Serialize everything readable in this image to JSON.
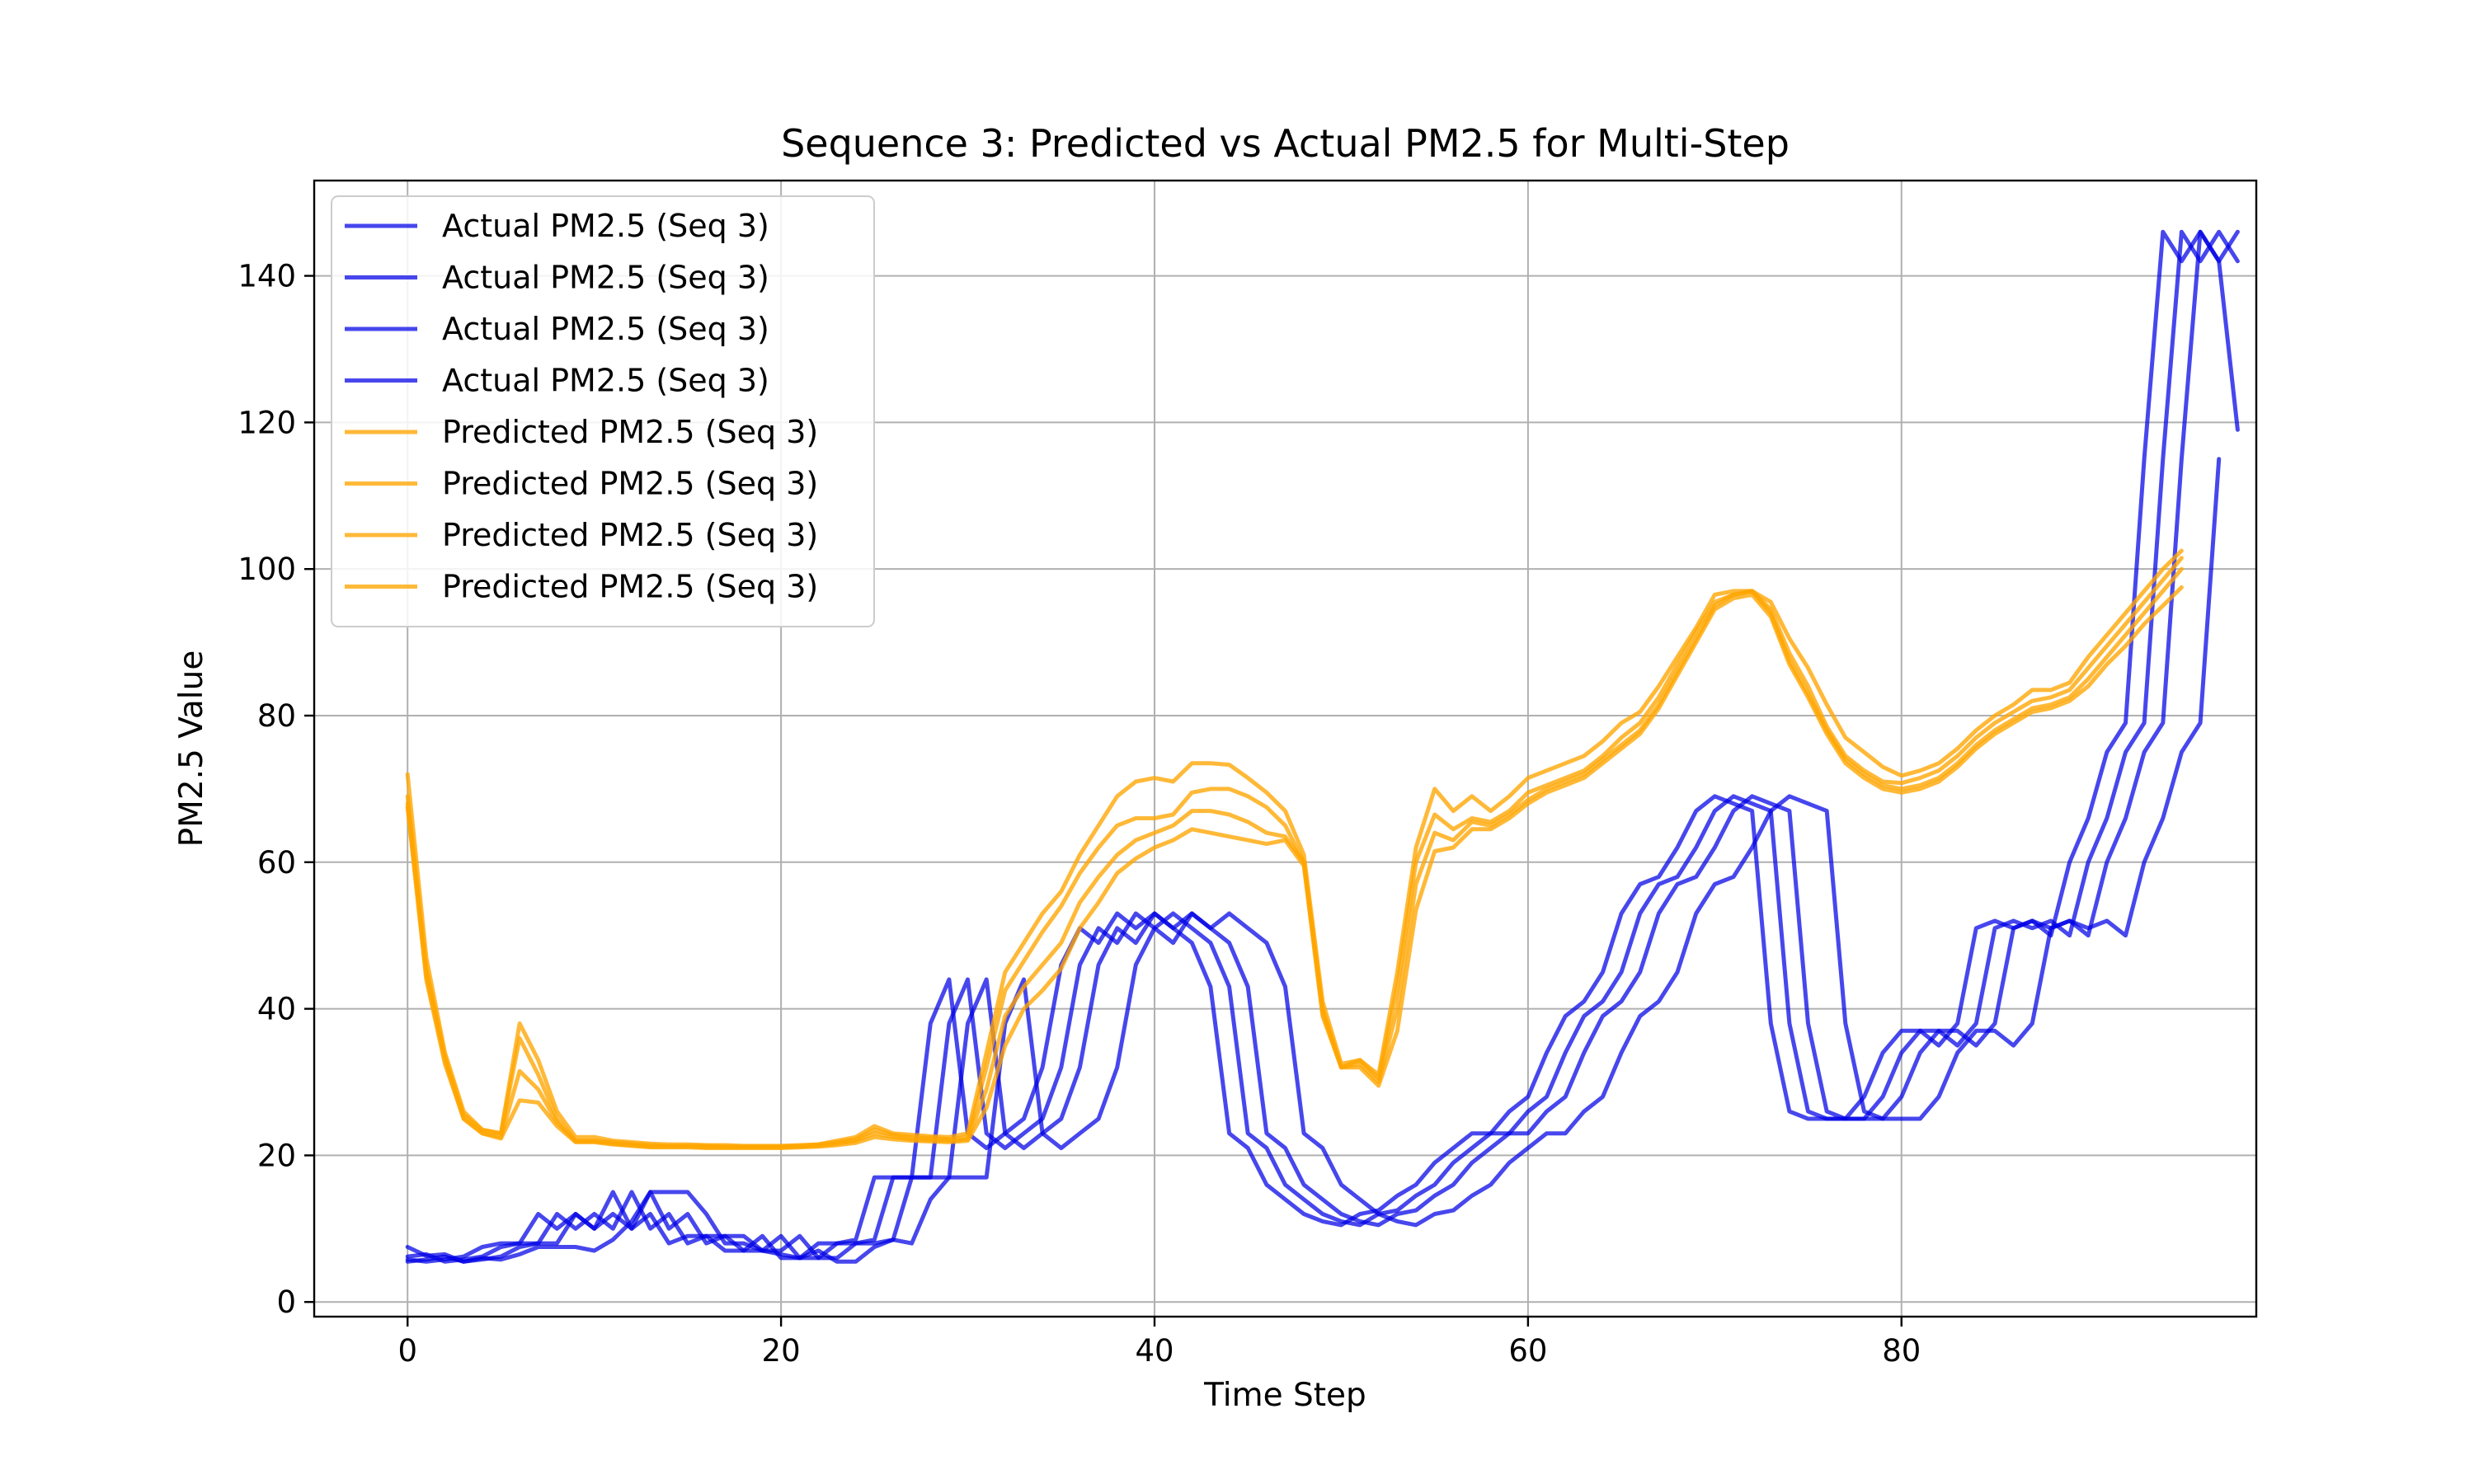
{
  "chart_data": {
    "type": "line",
    "title": "Sequence 3: Predicted vs Actual PM2.5 for Multi-Step",
    "xlabel": "Time Step",
    "ylabel": "PM2.5 Value",
    "xlim": [
      -5,
      99
    ],
    "ylim": [
      -2,
      153
    ],
    "xticks": [
      0,
      20,
      40,
      60,
      80
    ],
    "yticks": [
      0,
      20,
      40,
      60,
      80,
      100,
      120,
      140
    ],
    "grid": true,
    "legend_position": "upper-left",
    "colors": {
      "actual": "#0000e6",
      "predicted": "#ffa500"
    },
    "series": [
      {
        "name": "Actual PM2.5 (Seq 3)",
        "kind": "actual",
        "x_start": 0,
        "values": [
          7.5,
          6.3,
          6.5,
          5.5,
          5.8,
          6.2,
          7.5,
          8,
          8,
          12,
          10,
          12,
          10,
          15,
          10,
          12,
          8,
          9,
          9,
          7,
          7,
          9,
          6,
          6,
          8,
          8,
          8.5,
          17,
          17,
          17,
          38,
          44,
          23,
          21,
          23,
          25,
          32,
          46,
          51,
          49,
          53,
          51,
          53,
          51,
          49,
          43,
          23,
          21,
          16,
          14,
          12,
          11,
          10.5,
          12,
          12.5,
          14.5,
          16,
          19,
          21,
          23,
          23,
          26,
          28,
          34,
          39,
          41,
          45,
          53,
          57,
          58,
          62,
          67,
          69,
          68,
          67,
          38,
          26,
          25,
          25,
          25,
          28,
          34,
          37,
          37,
          35,
          38,
          51,
          52,
          51,
          52,
          50,
          60,
          66,
          75,
          79,
          115,
          146,
          142,
          146
        ]
      },
      {
        "name": "Actual PM2.5 (Seq 3)",
        "kind": "actual",
        "x_start": 0,
        "values": [
          6.2,
          6.5,
          5.5,
          5.8,
          6.2,
          7.5,
          8,
          8,
          12,
          10,
          12,
          10,
          15,
          10,
          12,
          8,
          9,
          9,
          7,
          7,
          9,
          6,
          6,
          8,
          8,
          8.5,
          17,
          17,
          17,
          38,
          44,
          23,
          21,
          23,
          25,
          32,
          46,
          51,
          49,
          53,
          51,
          53,
          51,
          49,
          43,
          23,
          21,
          16,
          14,
          12,
          11,
          10.5,
          12,
          12.5,
          14.5,
          16,
          19,
          21,
          23,
          23,
          26,
          28,
          34,
          39,
          41,
          45,
          53,
          57,
          58,
          62,
          67,
          69,
          68,
          67,
          38,
          26,
          25,
          25,
          25,
          28,
          34,
          37,
          37,
          35,
          38,
          51,
          52,
          51,
          52,
          50,
          60,
          66,
          75,
          79,
          115,
          146,
          142,
          146,
          142
        ]
      },
      {
        "name": "Actual PM2.5 (Seq 3)",
        "kind": "actual",
        "x_start": 0,
        "values": [
          5.8,
          5.5,
          5.8,
          6.2,
          7.5,
          8,
          8,
          12,
          10,
          12,
          10,
          15,
          10,
          12,
          8,
          9,
          9,
          7,
          7,
          9,
          6,
          6,
          8,
          8,
          8.5,
          17,
          17,
          17,
          38,
          44,
          23,
          21,
          23,
          25,
          32,
          46,
          51,
          49,
          53,
          51,
          53,
          51,
          49,
          43,
          23,
          21,
          16,
          14,
          12,
          11,
          10.5,
          12,
          12.5,
          14.5,
          16,
          19,
          21,
          23,
          23,
          26,
          28,
          34,
          39,
          41,
          45,
          53,
          57,
          58,
          62,
          67,
          69,
          68,
          67,
          38,
          26,
          25,
          25,
          25,
          28,
          34,
          37,
          37,
          35,
          38,
          51,
          52,
          51,
          52,
          50,
          60,
          66,
          75,
          79,
          115,
          146,
          142,
          146,
          142,
          119
        ]
      },
      {
        "name": "Actual PM2.5 (Seq 3)",
        "kind": "actual",
        "x_start": 0,
        "values": [
          5.5,
          5.8,
          6.2,
          5.5,
          6,
          5.8,
          6.5,
          7.5,
          7.5,
          7.5,
          7,
          8.5,
          11,
          15,
          15,
          15,
          12,
          8,
          8,
          7,
          6.5,
          6,
          7,
          5.5,
          5.5,
          7.5,
          8.5,
          8,
          14,
          17,
          17,
          17,
          38,
          44,
          23,
          21,
          23,
          25,
          32,
          46,
          51,
          49,
          53,
          51,
          53,
          51,
          49,
          43,
          23,
          21,
          16,
          14,
          12,
          11,
          10.5,
          12,
          12.5,
          14.5,
          16,
          19,
          21,
          23,
          23,
          26,
          28,
          34,
          39,
          41,
          45,
          53,
          57,
          58,
          62,
          67,
          69,
          68,
          67,
          38,
          26,
          25,
          25,
          25,
          28,
          34,
          37,
          37,
          35,
          38,
          51,
          52,
          51,
          52,
          50,
          60,
          66,
          75,
          79,
          115
        ]
      },
      {
        "name": "Predicted PM2.5 (Seq 3)",
        "kind": "predicted",
        "x_start": 0,
        "values": [
          72,
          47,
          34,
          26,
          23.5,
          23,
          38,
          33,
          26,
          22.5,
          22.5,
          22,
          21.8,
          21.6,
          21.5,
          21.5,
          21.4,
          21.4,
          21.3,
          21.3,
          21.3,
          21.4,
          21.5,
          22,
          22.5,
          24,
          23,
          22.8,
          22.6,
          22.5,
          23,
          34,
          45,
          49,
          53,
          56,
          61,
          65,
          69,
          71,
          71.5,
          71,
          73.5,
          73.5,
          73.3,
          71.5,
          69.5,
          67,
          61,
          41,
          32.5,
          33,
          31,
          45,
          62,
          70,
          67,
          69,
          67,
          69,
          71.5,
          72.5,
          73.5,
          74.5,
          76.5,
          79,
          80.5,
          84,
          88,
          92,
          96.5,
          97,
          97,
          95.5,
          90.5,
          86.5,
          81.5,
          77,
          75,
          73,
          71.8,
          72.5,
          73.5,
          75.5,
          78,
          80,
          81.5,
          83.5,
          83.5,
          84.5,
          88,
          91,
          94,
          97,
          100,
          102.5
        ]
      },
      {
        "name": "Predicted PM2.5 (Seq 3)",
        "kind": "predicted",
        "x_start": 0,
        "values": [
          69,
          45.5,
          33.5,
          25.5,
          23.5,
          23,
          36,
          31,
          25,
          22,
          22,
          21.8,
          21.6,
          21.4,
          21.3,
          21.3,
          21.3,
          21.2,
          21.2,
          21.2,
          21.2,
          21.3,
          21.5,
          21.8,
          22.2,
          23.5,
          22.8,
          22.5,
          22.4,
          22.2,
          22.5,
          32,
          42.5,
          46.5,
          50.5,
          54,
          58.5,
          62,
          65,
          66,
          66,
          66.5,
          69.5,
          70,
          70,
          69,
          67.5,
          65,
          60,
          40,
          32,
          33,
          30.5,
          43,
          60,
          66.5,
          64.5,
          66,
          65.5,
          67,
          69.5,
          70.5,
          71.5,
          72.5,
          74.5,
          77,
          79,
          82.5,
          87,
          91.5,
          95.5,
          96.5,
          97,
          94.5,
          88.5,
          84,
          78.5,
          74.5,
          72.5,
          71,
          70.8,
          71.5,
          72.5,
          74.5,
          77,
          79,
          80.5,
          82,
          82.5,
          83.5,
          86.5,
          89.5,
          92.5,
          95.5,
          98.5,
          101.5
        ]
      },
      {
        "name": "Predicted PM2.5 (Seq 3)",
        "kind": "predicted",
        "x_start": 0,
        "values": [
          68,
          44.5,
          33,
          25,
          23,
          22.5,
          31.5,
          29,
          24.5,
          21.9,
          21.9,
          21.6,
          21.4,
          21.2,
          21.2,
          21.2,
          21.1,
          21.1,
          21.1,
          21.1,
          21.1,
          21.2,
          21.3,
          21.6,
          22,
          23,
          22.5,
          22.2,
          22.1,
          22,
          22.2,
          29,
          39,
          43,
          46,
          49,
          54.5,
          58,
          61,
          63,
          64,
          65,
          67,
          67,
          66.5,
          65.5,
          64,
          63.5,
          60,
          39.5,
          32,
          32.5,
          30,
          40,
          57,
          64,
          63,
          65.5,
          65,
          66.5,
          68.5,
          70,
          71,
          72,
          74,
          76,
          78,
          81.5,
          86,
          90.5,
          95,
          96.5,
          97,
          94,
          87.5,
          83,
          78,
          74,
          72,
          70.5,
          70,
          70.5,
          71.5,
          73.5,
          76,
          78,
          79.5,
          81,
          81.5,
          82.5,
          85,
          88,
          91,
          94,
          97,
          100
        ]
      },
      {
        "name": "Predicted PM2.5 (Seq 3)",
        "kind": "predicted",
        "x_start": 0,
        "values": [
          67.5,
          44,
          32.5,
          25,
          23,
          22.3,
          27.5,
          27.2,
          24,
          21.8,
          21.8,
          21.5,
          21.3,
          21.1,
          21.1,
          21.1,
          21,
          21,
          21,
          21,
          21,
          21.1,
          21.2,
          21.4,
          21.7,
          22.5,
          22.2,
          22,
          21.9,
          21.8,
          22,
          26.5,
          35,
          40,
          42.5,
          45.5,
          51,
          54.5,
          58.5,
          60.5,
          62,
          63,
          64.5,
          64,
          63.5,
          63,
          62.5,
          63,
          59.5,
          39,
          32,
          32,
          29.5,
          37,
          53.5,
          61.5,
          62,
          64.5,
          64.5,
          66,
          68,
          69.5,
          70.5,
          71.5,
          73.5,
          75.5,
          77.5,
          81,
          85.5,
          90,
          94.5,
          96,
          96.5,
          93.5,
          87,
          82.5,
          77.5,
          73.5,
          71.5,
          70,
          69.5,
          70,
          71,
          73,
          75.5,
          77.5,
          79,
          80.5,
          81,
          82,
          84,
          87,
          89.5,
          92.5,
          95,
          97.5
        ]
      }
    ]
  }
}
